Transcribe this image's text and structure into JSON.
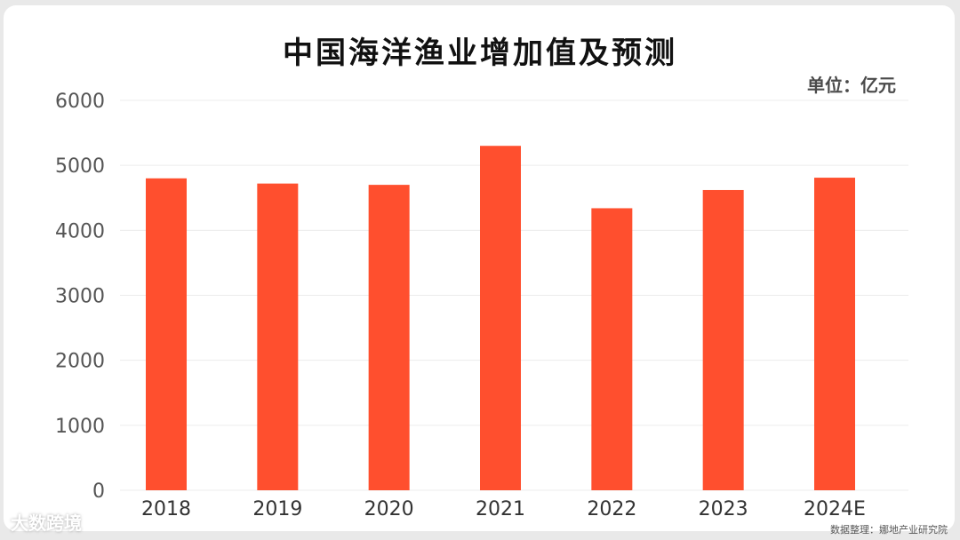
{
  "chart_data": {
    "type": "bar",
    "title": "中国海洋渔业增加值及预测",
    "unit": "单位：亿元",
    "categories": [
      "2018",
      "2019",
      "2020",
      "2021",
      "2022",
      "2023",
      "2024E"
    ],
    "values": [
      4800,
      4720,
      4700,
      5300,
      4340,
      4620,
      4810
    ],
    "ylim": [
      0,
      6000
    ],
    "yticks": [
      0,
      1000,
      2000,
      3000,
      4000,
      5000,
      6000
    ],
    "grid": true,
    "bar_color": "#ff4f2e"
  },
  "footer": {
    "source": "数据整理：娜地产业研究院",
    "logo": "大数跨境"
  }
}
